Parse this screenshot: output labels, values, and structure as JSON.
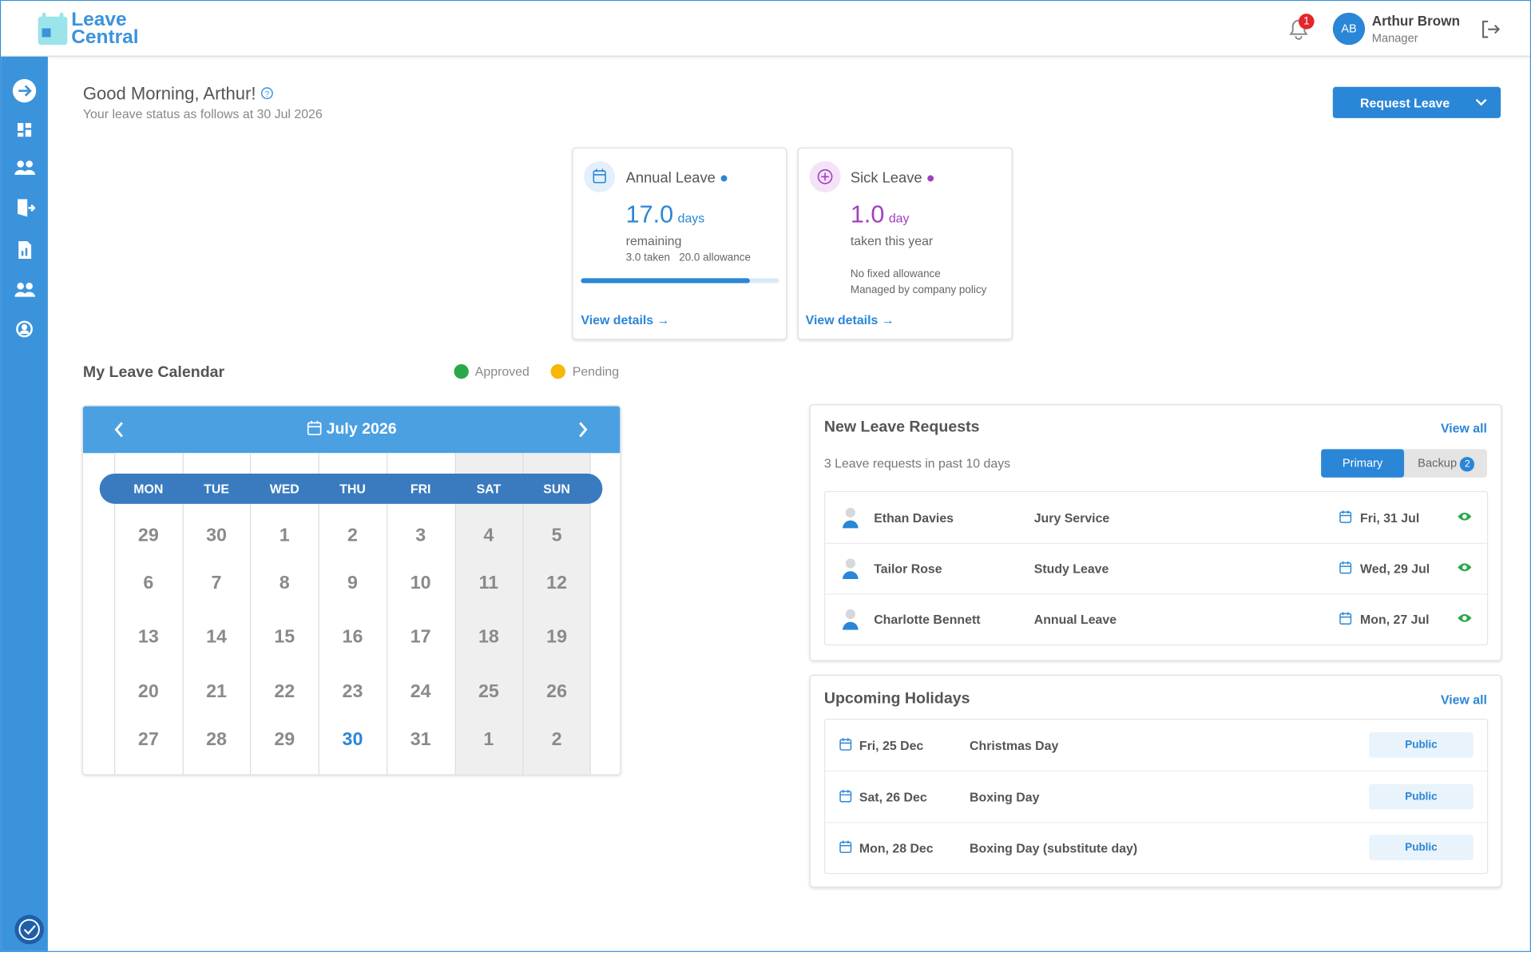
{
  "header": {
    "logo": [
      "Leave",
      "Central"
    ],
    "notification_count": "1",
    "user": {
      "initials": "AB",
      "name": "Arthur Brown",
      "role": "Manager"
    }
  },
  "greeting": {
    "title": "Good Morning, Arthur!",
    "subtitle": "Your leave status as follows at 30 Jul 2026",
    "action": "Request Leave"
  },
  "cards": [
    {
      "title": "Annual Leave",
      "amount": "17.0",
      "unit": "days",
      "caption": "remaining",
      "details": [
        "3.0 taken",
        "20.0 allowance"
      ],
      "link": "View details"
    },
    {
      "title": "Sick Leave",
      "amount": "1.0",
      "unit": "day",
      "caption": "taken this year",
      "details": [
        "No fixed allowance",
        "Managed by company policy"
      ],
      "link": "View details"
    }
  ],
  "calendar": {
    "title": "My Leave Calendar",
    "legend": [
      "Approved",
      "Pending"
    ],
    "month": "July 2026",
    "weekdays": [
      "MON",
      "TUE",
      "WED",
      "THU",
      "FRI",
      "SAT",
      "SUN"
    ],
    "weeks": [
      [
        "29",
        "30",
        "1",
        "2",
        "3",
        "4",
        "5"
      ],
      [
        "6",
        "7",
        "8",
        "9",
        "10",
        "11",
        "12"
      ],
      [
        "13",
        "14",
        "15",
        "16",
        "17",
        "18",
        "19"
      ],
      [
        "20",
        "21",
        "22",
        "23",
        "24",
        "25",
        "26"
      ],
      [
        "27",
        "28",
        "29",
        "30",
        "31",
        "1",
        "2"
      ]
    ]
  },
  "requests": {
    "title": "New Leave Requests",
    "link": "View all",
    "subtitle": "3 Leave requests in past 10 days",
    "tabs": [
      "Primary",
      "Backup"
    ],
    "backup_count": "2",
    "rows": [
      [
        "Ethan Davies",
        "Jury Service",
        "Fri, 31 Jul"
      ],
      [
        "Tailor Rose",
        "Study Leave",
        "Wed, 29 Jul"
      ],
      [
        "Charlotte Bennett",
        "Annual Leave",
        "Mon, 27 Jul"
      ]
    ]
  },
  "holidays": {
    "title": "Upcoming Holidays",
    "link": "View all",
    "rows": [
      [
        "Fri, 25 Dec",
        "Christmas Day",
        "Public"
      ],
      [
        "Sat, 26 Dec",
        "Boxing Day",
        "Public"
      ],
      [
        "Mon, 28 Dec",
        "Boxing Day (substitute day)",
        "Public"
      ]
    ]
  }
}
